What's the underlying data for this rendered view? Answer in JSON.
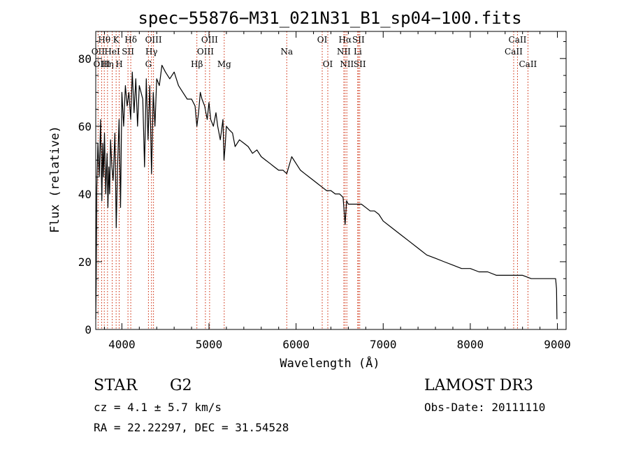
{
  "chart_data": {
    "type": "line",
    "title": "spec−55876−M31_021N31_B1_sp04−100.fits",
    "xlabel": "Wavelength (Å)",
    "ylabel": "Flux (relative)",
    "xlim": [
      3700,
      9100
    ],
    "ylim": [
      0,
      88
    ],
    "x_ticks": [
      4000,
      5000,
      6000,
      7000,
      8000,
      9000
    ],
    "x_tick_labels": [
      "4000",
      "5000",
      "6000",
      "7000",
      "8000",
      "9000"
    ],
    "y_ticks": [
      0,
      20,
      40,
      60,
      80
    ],
    "y_tick_labels": [
      "0",
      "20",
      "40",
      "60",
      "80"
    ],
    "series": [
      {
        "name": "flux",
        "x": [
          3700,
          3705,
          3712,
          3725,
          3740,
          3755,
          3770,
          3780,
          3790,
          3800,
          3815,
          3830,
          3840,
          3850,
          3860,
          3870,
          3885,
          3900,
          3920,
          3935,
          3950,
          3968,
          3985,
          4000,
          4020,
          4040,
          4060,
          4080,
          4101,
          4120,
          4140,
          4160,
          4180,
          4200,
          4220,
          4240,
          4260,
          4280,
          4300,
          4320,
          4340,
          4360,
          4380,
          4400,
          4430,
          4460,
          4500,
          4550,
          4600,
          4650,
          4700,
          4750,
          4800,
          4840,
          4861,
          4880,
          4900,
          4920,
          4950,
          4980,
          5000,
          5020,
          5050,
          5080,
          5100,
          5130,
          5160,
          5172,
          5185,
          5200,
          5230,
          5270,
          5300,
          5350,
          5400,
          5450,
          5500,
          5550,
          5600,
          5650,
          5700,
          5750,
          5800,
          5850,
          5893,
          5950,
          6000,
          6050,
          6100,
          6150,
          6200,
          6250,
          6300,
          6350,
          6400,
          6450,
          6500,
          6540,
          6563,
          6580,
          6600,
          6650,
          6700,
          6750,
          6800,
          6850,
          6900,
          6950,
          7000,
          7100,
          7200,
          7300,
          7400,
          7500,
          7600,
          7700,
          7800,
          7900,
          8000,
          8100,
          8200,
          8300,
          8400,
          8500,
          8600,
          8700,
          8800,
          8900,
          8980,
          8990,
          8995
        ],
        "values": [
          3,
          14,
          42,
          55,
          45,
          62,
          38,
          55,
          45,
          58,
          40,
          52,
          36,
          48,
          40,
          56,
          48,
          44,
          58,
          30,
          48,
          62,
          36,
          70,
          60,
          72,
          66,
          70,
          62,
          76,
          64,
          74,
          60,
          72,
          70,
          68,
          48,
          74,
          56,
          72,
          46,
          70,
          60,
          74,
          72,
          78,
          76,
          74,
          76,
          72,
          70,
          68,
          68,
          66,
          60,
          64,
          70,
          68,
          66,
          62,
          67,
          62,
          60,
          64,
          60,
          56,
          62,
          50,
          54,
          60,
          59,
          58,
          54,
          56,
          55,
          54,
          52,
          53,
          51,
          50,
          49,
          48,
          47,
          47,
          46,
          51,
          49,
          47,
          46,
          45,
          44,
          43,
          42,
          41,
          41,
          40,
          40,
          39,
          31,
          38,
          37,
          37,
          37,
          37,
          36,
          35,
          35,
          34,
          32,
          30,
          28,
          26,
          24,
          22,
          21,
          20,
          19,
          18,
          18,
          17,
          17,
          16,
          16,
          16,
          16,
          15,
          15,
          15,
          15,
          12,
          3
        ]
      }
    ],
    "lines": [
      {
        "name": "Hθ",
        "x": 3798,
        "row": 0
      },
      {
        "name": "OII",
        "x": 3727,
        "row": 1
      },
      {
        "name": "OIII",
        "x": 3768,
        "row": 2
      },
      {
        "name": "Hη",
        "x": 3835,
        "row": 2
      },
      {
        "name": "HeI",
        "x": 3889,
        "row": 1
      },
      {
        "name": "K",
        "x": 3934,
        "row": 0
      },
      {
        "name": "SII",
        "x": 4070,
        "row": 1
      },
      {
        "name": "H",
        "x": 3969,
        "row": 2
      },
      {
        "name": "Hδ",
        "x": 4102,
        "row": 0
      },
      {
        "name": "OIII",
        "x": 4363,
        "row": 0
      },
      {
        "name": "Hγ",
        "x": 4340,
        "row": 1
      },
      {
        "name": "G",
        "x": 4305,
        "row": 2
      },
      {
        "name": "Hβ",
        "x": 4861,
        "row": 2
      },
      {
        "name": "OIII",
        "x": 4959,
        "row": 1
      },
      {
        "name": "OIII",
        "x": 5007,
        "row": 0
      },
      {
        "name": "Mg",
        "x": 5175,
        "row": 2
      },
      {
        "name": "Na",
        "x": 5893,
        "row": 1
      },
      {
        "name": "OI",
        "x": 6300,
        "row": 0
      },
      {
        "name": "OI",
        "x": 6364,
        "row": 2
      },
      {
        "name": "Hα",
        "x": 6563,
        "row": 0
      },
      {
        "name": "NII",
        "x": 6548,
        "row": 1
      },
      {
        "name": "NII",
        "x": 6583,
        "row": 2
      },
      {
        "name": "SII",
        "x": 6716,
        "row": 0
      },
      {
        "name": "Li",
        "x": 6708,
        "row": 1
      },
      {
        "name": "SII",
        "x": 6731,
        "row": 2
      },
      {
        "name": "CaII",
        "x": 8542,
        "row": 0
      },
      {
        "name": "CaII",
        "x": 8498,
        "row": 1
      },
      {
        "name": "CaII",
        "x": 8662,
        "row": 2
      }
    ]
  },
  "info": {
    "obj_type": "STAR",
    "subclass": "G2",
    "survey": "LAMOST DR3",
    "cz": "cz = 4.1 ± 5.7 km/s",
    "obs_date": "Obs-Date: 20111110",
    "coords": "RA =  22.22297, DEC =  31.54528"
  },
  "colors": {
    "line_marker": "#cc2200",
    "spectrum": "#000000",
    "axis": "#000000"
  }
}
